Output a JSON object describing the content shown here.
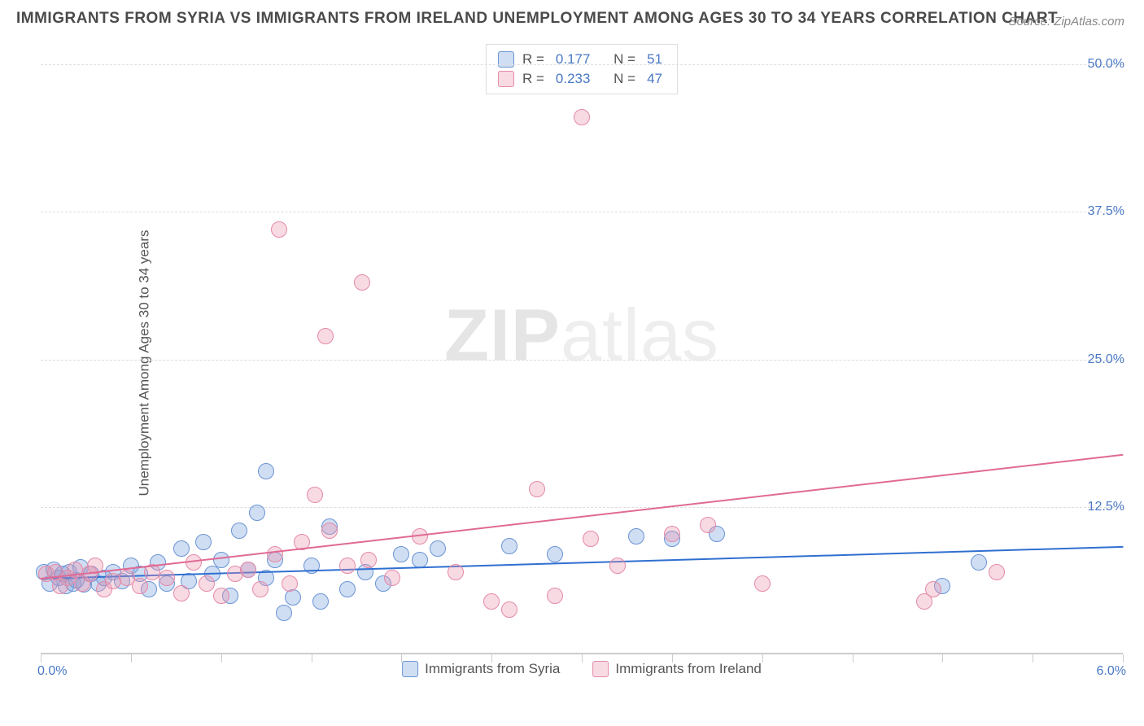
{
  "chart": {
    "type": "scatter",
    "title": "IMMIGRANTS FROM SYRIA VS IMMIGRANTS FROM IRELAND UNEMPLOYMENT AMONG AGES 30 TO 34 YEARS CORRELATION CHART",
    "source_label": "Source: ZipAtlas.com",
    "ylabel": "Unemployment Among Ages 30 to 34 years",
    "watermark": {
      "bold": "ZIP",
      "rest": "atlas"
    },
    "xlim": [
      0.0,
      6.0
    ],
    "ylim": [
      0.0,
      52.0
    ],
    "xlim_labels": [
      "0.0%",
      "6.0%"
    ],
    "yticks": [
      12.5,
      25.0,
      37.5,
      50.0
    ],
    "ytick_labels": [
      "12.5%",
      "25.0%",
      "37.5%",
      "50.0%"
    ],
    "xtick_positions": [
      0.0,
      0.5,
      1.0,
      1.5,
      2.0,
      2.5,
      3.0,
      3.5,
      4.0,
      4.5,
      5.0,
      5.5,
      6.0
    ],
    "background_color": "#ffffff",
    "grid_color": "#dddddd",
    "axis_color": "#cccccc",
    "title_fontsize": 19,
    "label_fontsize": 17,
    "tick_fontsize": 16,
    "axis_label_color": "#4a78c4",
    "text_color": "#555555",
    "marker_radius": 10,
    "series": [
      {
        "name": "Immigrants from Syria",
        "key": "syria",
        "fill": "rgba(120,160,220,0.35)",
        "stroke": "#6a94d4",
        "line_color": "#2f6fd0",
        "R_label": "R =",
        "R": "0.177",
        "N_label": "N =",
        "N": "51",
        "trend": {
          "x0": 0.0,
          "y0": 6.5,
          "x1": 6.0,
          "y1": 9.2
        },
        "points": [
          [
            0.02,
            7.0
          ],
          [
            0.05,
            6.0
          ],
          [
            0.07,
            7.2
          ],
          [
            0.1,
            6.5
          ],
          [
            0.12,
            6.8
          ],
          [
            0.14,
            5.8
          ],
          [
            0.16,
            7.0
          ],
          [
            0.18,
            6.0
          ],
          [
            0.2,
            6.3
          ],
          [
            0.22,
            7.4
          ],
          [
            0.24,
            5.9
          ],
          [
            0.28,
            6.8
          ],
          [
            0.32,
            6.0
          ],
          [
            0.35,
            6.5
          ],
          [
            0.4,
            7.0
          ],
          [
            0.45,
            6.2
          ],
          [
            0.5,
            7.5
          ],
          [
            0.55,
            6.8
          ],
          [
            0.6,
            5.5
          ],
          [
            0.65,
            7.8
          ],
          [
            0.7,
            6.0
          ],
          [
            0.78,
            9.0
          ],
          [
            0.82,
            6.2
          ],
          [
            0.9,
            9.5
          ],
          [
            0.95,
            6.8
          ],
          [
            1.0,
            8.0
          ],
          [
            1.05,
            5.0
          ],
          [
            1.1,
            10.5
          ],
          [
            1.15,
            7.2
          ],
          [
            1.2,
            12.0
          ],
          [
            1.25,
            6.5
          ],
          [
            1.3,
            8.0
          ],
          [
            1.35,
            3.5
          ],
          [
            1.25,
            15.5
          ],
          [
            1.4,
            4.8
          ],
          [
            1.5,
            7.5
          ],
          [
            1.55,
            4.5
          ],
          [
            1.6,
            10.8
          ],
          [
            1.7,
            5.5
          ],
          [
            1.8,
            7.0
          ],
          [
            1.9,
            6.0
          ],
          [
            2.0,
            8.5
          ],
          [
            2.1,
            8.0
          ],
          [
            2.2,
            9.0
          ],
          [
            2.6,
            9.2
          ],
          [
            2.85,
            8.5
          ],
          [
            3.3,
            10.0
          ],
          [
            3.5,
            9.8
          ],
          [
            5.0,
            5.8
          ],
          [
            5.2,
            7.8
          ],
          [
            3.75,
            10.2
          ]
        ]
      },
      {
        "name": "Immigrants from Ireland",
        "key": "ireland",
        "fill": "rgba(235,150,175,0.35)",
        "stroke": "#e48aa8",
        "line_color": "#e06a94",
        "R_label": "R =",
        "R": "0.233",
        "N_label": "N =",
        "N": "47",
        "trend": {
          "x0": 0.0,
          "y0": 6.5,
          "x1": 6.0,
          "y1": 17.0
        },
        "points": [
          [
            0.03,
            6.8
          ],
          [
            0.08,
            7.0
          ],
          [
            0.11,
            5.8
          ],
          [
            0.15,
            6.5
          ],
          [
            0.19,
            7.2
          ],
          [
            0.23,
            6.0
          ],
          [
            0.27,
            6.8
          ],
          [
            0.3,
            7.5
          ],
          [
            0.35,
            5.5
          ],
          [
            0.4,
            6.2
          ],
          [
            0.48,
            6.5
          ],
          [
            0.55,
            5.8
          ],
          [
            0.62,
            7.0
          ],
          [
            0.7,
            6.5
          ],
          [
            0.78,
            5.2
          ],
          [
            0.85,
            7.8
          ],
          [
            0.92,
            6.0
          ],
          [
            1.0,
            5.0
          ],
          [
            1.08,
            6.8
          ],
          [
            1.15,
            7.2
          ],
          [
            1.22,
            5.5
          ],
          [
            1.3,
            8.5
          ],
          [
            1.38,
            6.0
          ],
          [
            1.45,
            9.5
          ],
          [
            1.32,
            36.0
          ],
          [
            1.52,
            13.5
          ],
          [
            1.6,
            10.5
          ],
          [
            1.58,
            27.0
          ],
          [
            1.7,
            7.5
          ],
          [
            1.78,
            31.5
          ],
          [
            1.82,
            8.0
          ],
          [
            1.95,
            6.5
          ],
          [
            2.1,
            10.0
          ],
          [
            2.3,
            7.0
          ],
          [
            2.5,
            4.5
          ],
          [
            2.6,
            3.8
          ],
          [
            2.75,
            14.0
          ],
          [
            2.85,
            5.0
          ],
          [
            3.0,
            45.5
          ],
          [
            3.2,
            7.5
          ],
          [
            3.5,
            10.2
          ],
          [
            3.7,
            11.0
          ],
          [
            4.0,
            6.0
          ],
          [
            4.9,
            4.5
          ],
          [
            4.95,
            5.5
          ],
          [
            5.3,
            7.0
          ],
          [
            3.05,
            9.8
          ]
        ]
      }
    ]
  }
}
